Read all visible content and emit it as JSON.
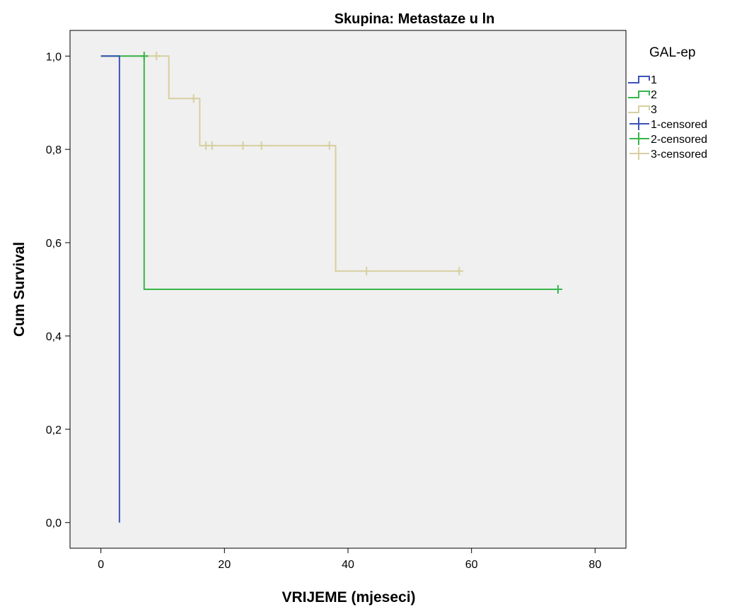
{
  "chart_data": {
    "type": "line",
    "title": "Skupina: Metastaze u ln",
    "xlabel": "VRIJEME (mjeseci)",
    "ylabel": "Cum Survival",
    "xlim": [
      -5,
      85
    ],
    "ylim": [
      -0.055,
      1.055
    ],
    "x_ticks": [
      0,
      20,
      40,
      60,
      80
    ],
    "x_tick_labels": [
      "0",
      "20",
      "40",
      "60",
      "80"
    ],
    "y_ticks": [
      0.0,
      0.2,
      0.4,
      0.6,
      0.8,
      1.0
    ],
    "y_tick_labels": [
      "0,0",
      "0,2",
      "0,4",
      "0,6",
      "0,8",
      "1,0"
    ],
    "grid": false,
    "legend_position": "right",
    "legend_title": "GAL-ep",
    "legend": [
      {
        "label": "1",
        "kind": "step",
        "color": "#3b53b8"
      },
      {
        "label": "2",
        "kind": "step",
        "color": "#37b54a"
      },
      {
        "label": "3",
        "kind": "step",
        "color": "#d7cfa0"
      },
      {
        "label": "1-censored",
        "kind": "censor",
        "color": "#3b53b8"
      },
      {
        "label": "2-censored",
        "kind": "censor",
        "color": "#37b54a"
      },
      {
        "label": "3-censored",
        "kind": "censor",
        "color": "#d7cfa0"
      }
    ],
    "series": [
      {
        "name": "1",
        "color": "#3b53b8",
        "steps": [
          [
            0,
            1.0
          ],
          [
            3,
            0.0
          ]
        ],
        "end_x": 3,
        "censored": []
      },
      {
        "name": "2",
        "color": "#37b54a",
        "steps": [
          [
            0,
            1.0
          ],
          [
            7,
            0.5
          ]
        ],
        "end_x": 74,
        "censored": [
          [
            7,
            1.0
          ],
          [
            74,
            0.5
          ]
        ]
      },
      {
        "name": "3",
        "color": "#d7cfa0",
        "steps": [
          [
            0,
            1.0
          ],
          [
            11,
            0.909
          ],
          [
            16,
            0.808
          ],
          [
            38,
            0.539
          ]
        ],
        "end_x": 58,
        "censored": [
          [
            7,
            1.0
          ],
          [
            9,
            1.0
          ],
          [
            15,
            0.909
          ],
          [
            17,
            0.808
          ],
          [
            18,
            0.808
          ],
          [
            23,
            0.808
          ],
          [
            26,
            0.808
          ],
          [
            37,
            0.808
          ],
          [
            43,
            0.539
          ],
          [
            58,
            0.539
          ]
        ]
      }
    ]
  },
  "colors": {
    "plot_background": "#f0f0f0",
    "frame": "#000000"
  }
}
